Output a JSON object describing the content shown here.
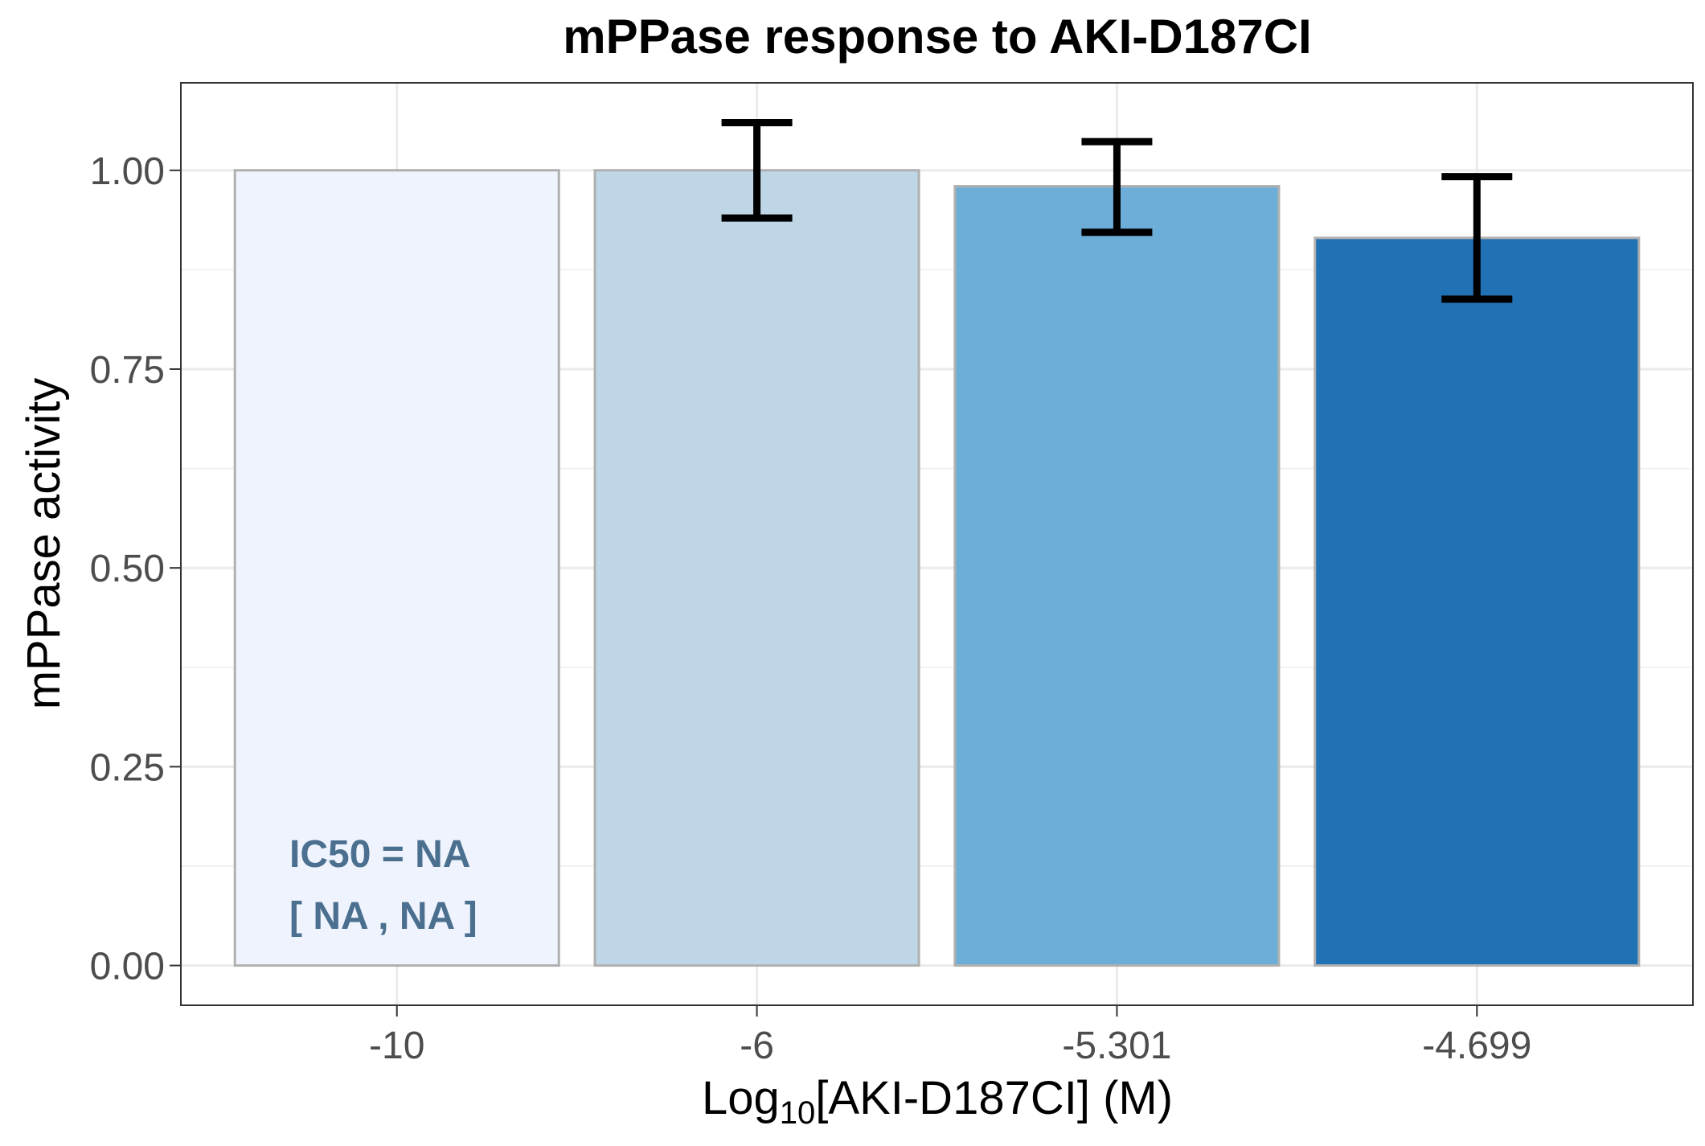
{
  "chart_data": {
    "type": "bar",
    "title": "mPPase response to AKI-D187CI",
    "xlabel": {
      "prefix": "Log",
      "subscript": "10",
      "suffix": "[AKI-D187CI] (M)"
    },
    "ylabel": "mPPase activity",
    "categories": [
      "-10",
      "-6",
      "-5.301",
      "-4.699"
    ],
    "values": [
      1.0,
      1.0,
      0.98,
      0.915
    ],
    "error_bars": [
      null,
      [
        0.94,
        1.06
      ],
      [
        0.922,
        1.036
      ],
      [
        0.838,
        0.992
      ]
    ],
    "colors": [
      "#eef3fd",
      "#bfd6e6",
      "#6daed8",
      "#2171b5"
    ],
    "bar_outline": "#b0b0b0",
    "ylim": [
      -0.05,
      1.11
    ],
    "yticks": [
      "0.00",
      "0.25",
      "0.50",
      "0.75",
      "1.00"
    ],
    "ytick_values": [
      0,
      0.25,
      0.5,
      0.75,
      1.0
    ],
    "grid": true,
    "annotations": [
      "IC50 = NA",
      "[ NA , NA ]"
    ],
    "annotation_color": "#4a6f8f"
  }
}
